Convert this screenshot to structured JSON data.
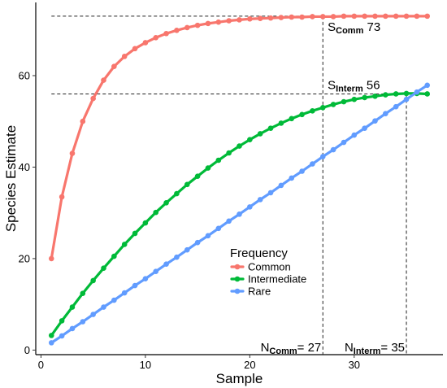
{
  "chart_data": {
    "type": "line",
    "xlabel": "Sample",
    "ylabel": "Species Estimate",
    "xlim": [
      -0.5,
      38.5
    ],
    "ylim": [
      -1,
      76
    ],
    "xticks": [
      0,
      10,
      20,
      30
    ],
    "yticks": [
      0,
      20,
      40,
      60
    ],
    "grid": false,
    "legend": {
      "title": "Frequency",
      "placement": "center-bottom",
      "entries": [
        "Common",
        "Intermediate",
        "Rare"
      ]
    },
    "series": [
      {
        "name": "Common",
        "color": "#F8766D",
        "x": [
          1,
          2,
          3,
          4,
          5,
          6,
          7,
          8,
          9,
          10,
          11,
          12,
          13,
          14,
          15,
          16,
          17,
          18,
          19,
          20,
          21,
          22,
          23,
          24,
          25,
          26,
          27,
          28,
          29,
          30,
          31,
          32,
          33,
          34,
          35,
          36,
          37
        ],
        "y": [
          20,
          33.5,
          43,
          50,
          55,
          59,
          62,
          64.2,
          65.9,
          67.2,
          68.3,
          69.2,
          69.9,
          70.5,
          71,
          71.4,
          71.7,
          72,
          72.2,
          72.4,
          72.5,
          72.6,
          72.7,
          72.8,
          72.8,
          72.9,
          72.9,
          72.9,
          73,
          73,
          73,
          73,
          73,
          73,
          73,
          73,
          73
        ]
      },
      {
        "name": "Intermediate",
        "color": "#00BA38",
        "x": [
          1,
          2,
          3,
          4,
          5,
          6,
          7,
          8,
          9,
          10,
          11,
          12,
          13,
          14,
          15,
          16,
          17,
          18,
          19,
          20,
          21,
          22,
          23,
          24,
          25,
          26,
          27,
          28,
          29,
          30,
          31,
          32,
          33,
          34,
          35,
          36,
          37
        ],
        "y": [
          3.2,
          6.4,
          9.4,
          12.4,
          15.2,
          17.9,
          20.5,
          23.1,
          25.5,
          27.8,
          30.1,
          32.2,
          34.2,
          36.2,
          38,
          39.8,
          41.5,
          43.1,
          44.6,
          46,
          47.3,
          48.5,
          49.6,
          50.6,
          51.5,
          52.3,
          53,
          53.7,
          54.3,
          54.8,
          55.2,
          55.5,
          55.8,
          56,
          56.1,
          56.1,
          56
        ]
      },
      {
        "name": "Rare",
        "color": "#619CFF",
        "x": [
          1,
          2,
          3,
          4,
          5,
          6,
          7,
          8,
          9,
          10,
          11,
          12,
          13,
          14,
          15,
          16,
          17,
          18,
          19,
          20,
          21,
          22,
          23,
          24,
          25,
          26,
          27,
          28,
          29,
          30,
          31,
          32,
          33,
          34,
          35,
          36,
          37
        ],
        "y": [
          1.6,
          3.1,
          4.7,
          6.2,
          7.8,
          9.4,
          10.9,
          12.5,
          14.1,
          15.6,
          17.2,
          18.8,
          20.3,
          21.9,
          23.5,
          25,
          26.6,
          28.2,
          29.7,
          31.3,
          32.9,
          34.4,
          36,
          37.6,
          39.1,
          40.7,
          42.3,
          43.8,
          45.4,
          47,
          48.5,
          50.1,
          51.7,
          53.2,
          54.8,
          56.4,
          57.9
        ]
      }
    ],
    "reference_lines": {
      "horizontal": [
        73,
        56
      ],
      "vertical": [
        27,
        35
      ]
    },
    "annotations": [
      {
        "id": "s_comm",
        "prefix": "S",
        "subscript": "Comm",
        "suffix": " 73",
        "x": 27.3,
        "y": 73,
        "anchor": "below"
      },
      {
        "id": "s_interm",
        "prefix": "S",
        "subscript": "Interm",
        "suffix": " 56",
        "x": 27.3,
        "y": 56,
        "anchor": "above"
      },
      {
        "id": "n_comm",
        "prefix": "N",
        "subscript": "Comm",
        "suffix": "= 27",
        "x": 27,
        "y": 0,
        "anchor": "left"
      },
      {
        "id": "n_interm",
        "prefix": "N",
        "subscript": "Interm",
        "suffix": "= 35",
        "x": 35,
        "y": 0,
        "anchor": "left"
      }
    ]
  }
}
